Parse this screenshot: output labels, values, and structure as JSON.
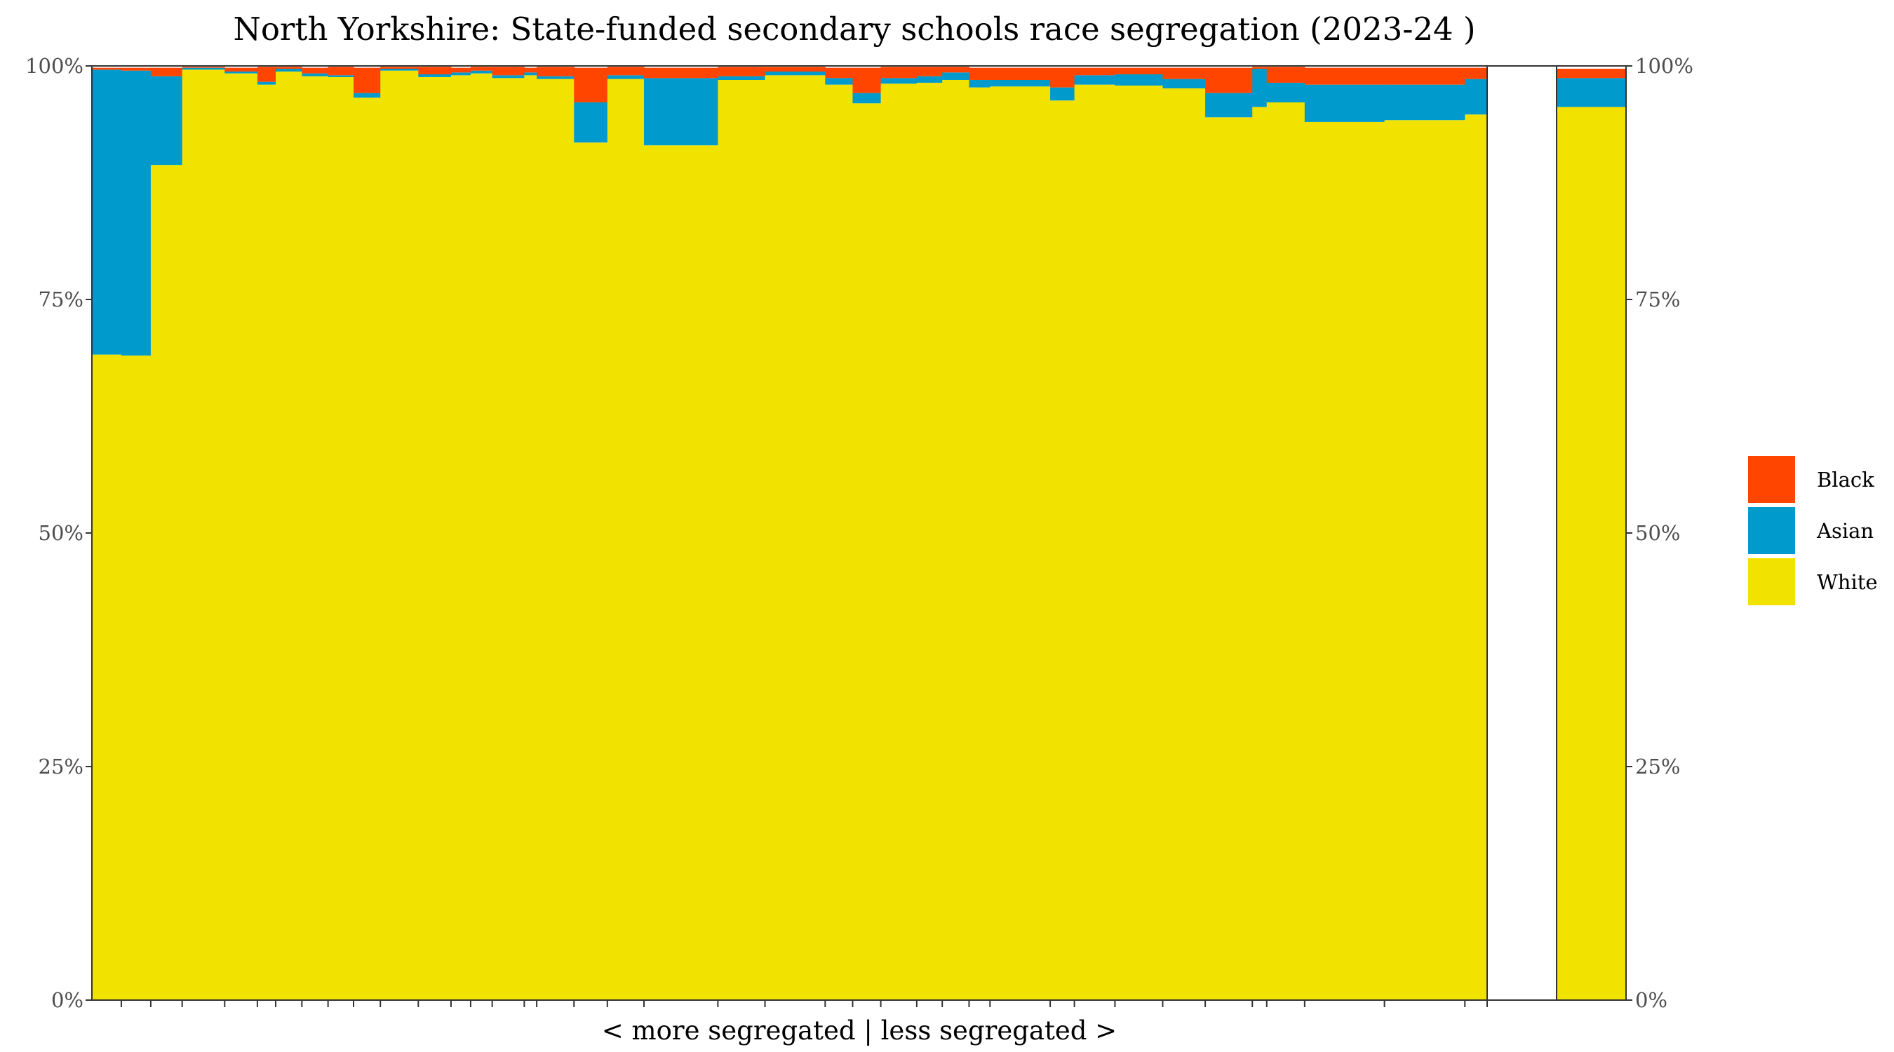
{
  "chart_data": {
    "type": "bar",
    "title": "North Yorkshire: State-funded secondary schools race segregation (2023-24 )",
    "xlabel": "< more segregated | less segregated >",
    "ylabel": "",
    "ylim": [
      0,
      100
    ],
    "y_ticks": [
      "0%",
      "25%",
      "50%",
      "75%",
      "100%"
    ],
    "legend": {
      "position": "right",
      "entries": [
        {
          "name": "Black",
          "color": "#FF4500"
        },
        {
          "name": "Asian",
          "color": "#009ACD"
        },
        {
          "name": "White",
          "color": "#F2E200"
        }
      ]
    },
    "stack_order": [
      "White",
      "Asian",
      "Black"
    ],
    "schools": [
      {
        "w": 4.5,
        "white": 69.1,
        "asian": 30.5,
        "black": 0.2
      },
      {
        "w": 4.5,
        "white": 69.0,
        "asian": 30.5,
        "black": 0.3
      },
      {
        "w": 4.8,
        "white": 89.4,
        "asian": 9.5,
        "black": 0.9
      },
      {
        "w": 6.5,
        "white": 99.6,
        "asian": 0.2,
        "black": 0.1
      },
      {
        "w": 5.0,
        "white": 99.2,
        "asian": 0.2,
        "black": 0.4
      },
      {
        "w": 2.8,
        "white": 98.0,
        "asian": 0.3,
        "black": 1.6
      },
      {
        "w": 4.0,
        "white": 99.4,
        "asian": 0.3,
        "black": 0.2
      },
      {
        "w": 4.0,
        "white": 98.9,
        "asian": 0.3,
        "black": 0.6
      },
      {
        "w": 3.9,
        "white": 98.8,
        "asian": 0.2,
        "black": 0.9
      },
      {
        "w": 4.1,
        "white": 96.6,
        "asian": 0.5,
        "black": 2.7
      },
      {
        "w": 5.8,
        "white": 99.5,
        "asian": 0.2,
        "black": 0.2
      },
      {
        "w": 5.0,
        "white": 98.8,
        "asian": 0.3,
        "black": 0.8
      },
      {
        "w": 3.0,
        "white": 99.0,
        "asian": 0.3,
        "black": 0.5
      },
      {
        "w": 3.3,
        "white": 99.2,
        "asian": 0.3,
        "black": 0.4
      },
      {
        "w": 4.9,
        "white": 98.7,
        "asian": 0.3,
        "black": 0.9
      },
      {
        "w": 1.9,
        "white": 99.0,
        "asian": 0.3,
        "black": 0.5
      },
      {
        "w": 5.7,
        "white": 98.6,
        "asian": 0.3,
        "black": 1.0
      },
      {
        "w": 5.1,
        "white": 91.8,
        "asian": 4.3,
        "black": 3.7
      },
      {
        "w": 5.6,
        "white": 98.6,
        "asian": 0.4,
        "black": 0.9
      },
      {
        "w": 11.3,
        "white": 91.5,
        "asian": 7.2,
        "black": 1.1
      },
      {
        "w": 7.2,
        "white": 98.5,
        "asian": 0.4,
        "black": 1.0
      },
      {
        "w": 9.2,
        "white": 99.0,
        "asian": 0.4,
        "black": 0.5
      },
      {
        "w": 4.2,
        "white": 98.0,
        "asian": 0.7,
        "black": 1.1
      },
      {
        "w": 4.3,
        "white": 96.0,
        "asian": 1.1,
        "black": 2.7
      },
      {
        "w": 5.5,
        "white": 98.1,
        "asian": 0.6,
        "black": 1.2
      },
      {
        "w": 3.9,
        "white": 98.2,
        "asian": 0.7,
        "black": 1.0
      },
      {
        "w": 4.1,
        "white": 98.5,
        "asian": 0.8,
        "black": 0.6
      },
      {
        "w": 3.2,
        "white": 97.7,
        "asian": 0.8,
        "black": 1.3
      },
      {
        "w": 9.2,
        "white": 97.8,
        "asian": 0.7,
        "black": 1.3
      },
      {
        "w": 3.7,
        "white": 96.3,
        "asian": 1.4,
        "black": 2.1
      },
      {
        "w": 6.2,
        "white": 98.0,
        "asian": 1.0,
        "black": 0.8
      },
      {
        "w": 7.3,
        "white": 97.9,
        "asian": 1.2,
        "black": 0.7
      },
      {
        "w": 6.5,
        "white": 97.6,
        "asian": 1.0,
        "black": 1.2
      },
      {
        "w": 7.2,
        "white": 94.5,
        "asian": 2.6,
        "black": 2.7
      },
      {
        "w": 2.2,
        "white": 95.6,
        "asian": 4.1,
        "black": 0.2
      },
      {
        "w": 5.8,
        "white": 96.1,
        "asian": 2.1,
        "black": 1.7
      },
      {
        "w": 12.2,
        "white": 94.0,
        "asian": 4.0,
        "black": 1.8
      },
      {
        "w": 12.3,
        "white": 94.2,
        "asian": 3.8,
        "black": 1.8
      },
      {
        "w": 3.4,
        "white": 94.8,
        "asian": 3.8,
        "black": 1.2
      }
    ],
    "overall": {
      "white": 95.6,
      "asian": 3.1,
      "black": 1.0
    }
  }
}
